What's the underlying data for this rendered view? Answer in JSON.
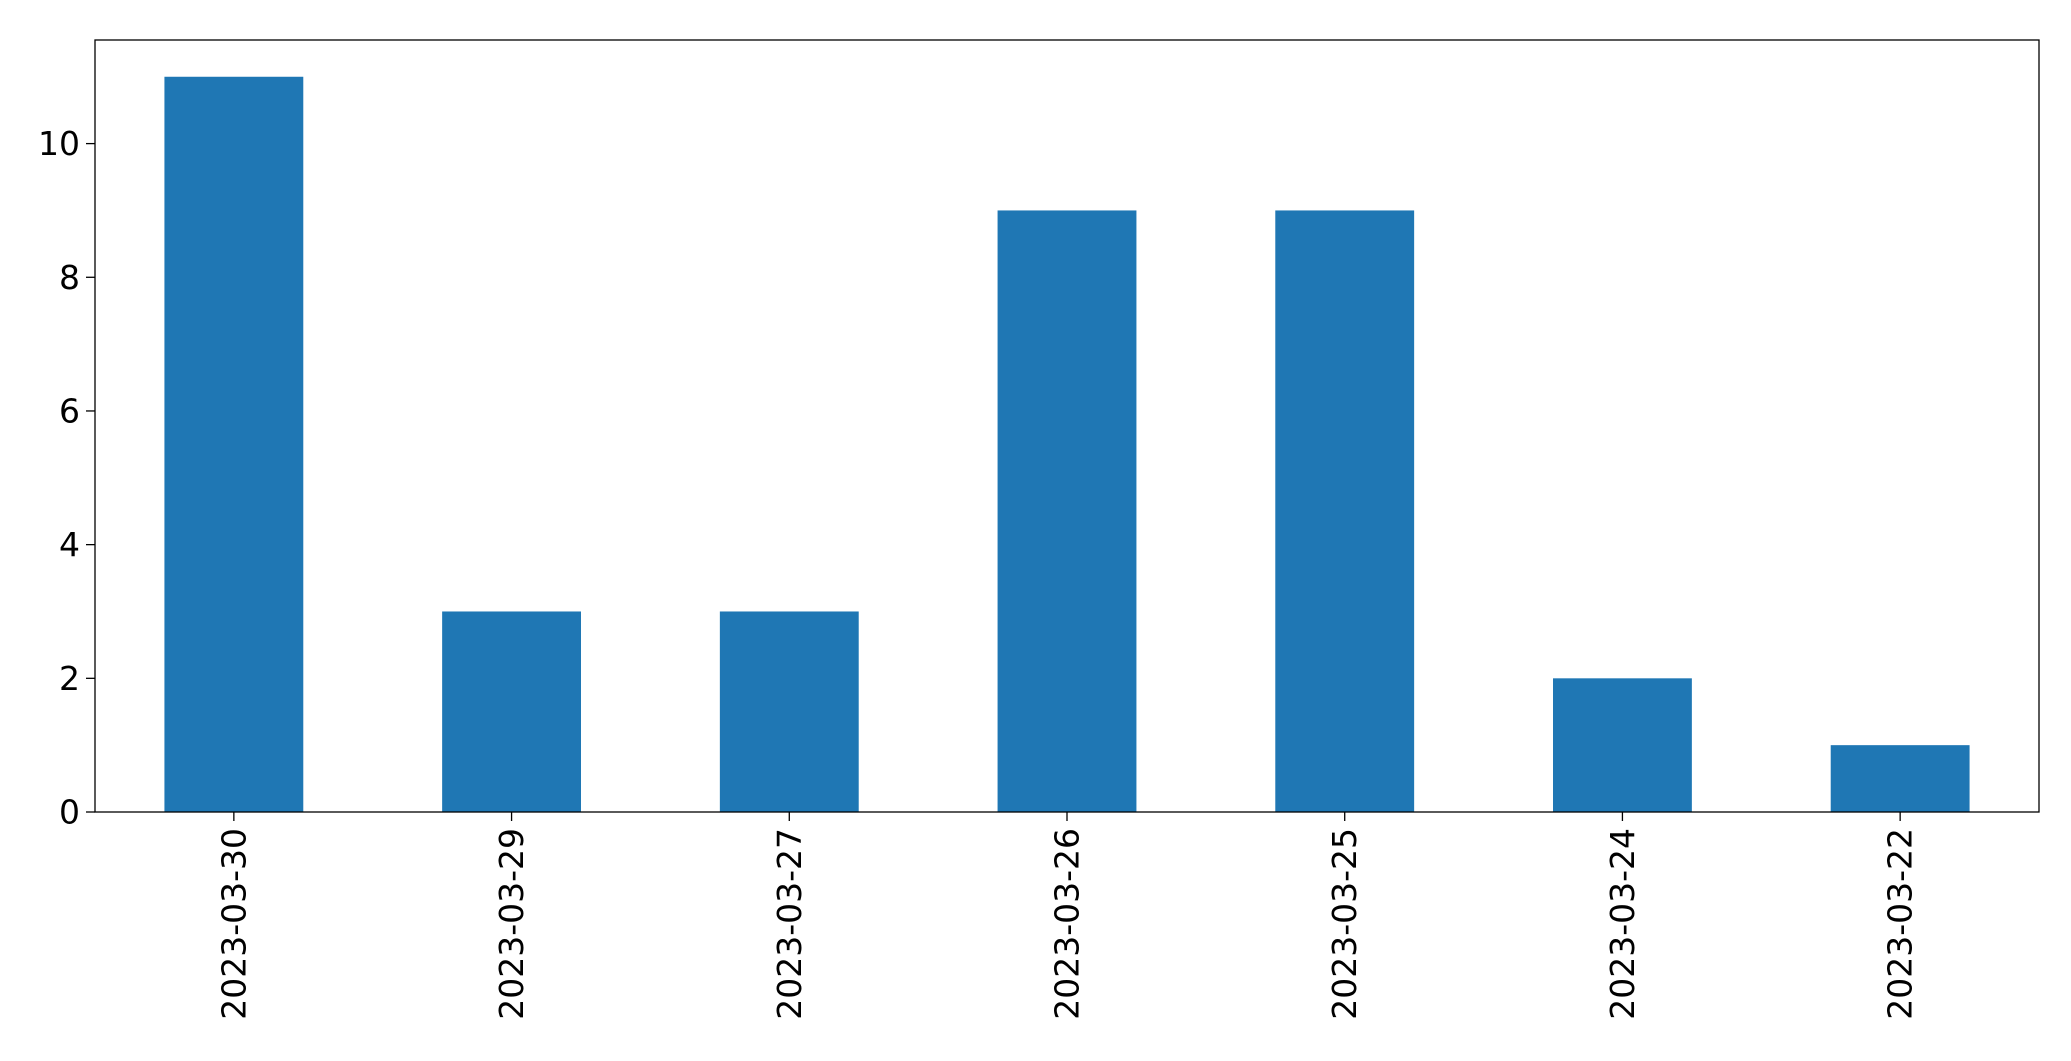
{
  "chart_data": {
    "type": "bar",
    "title": "",
    "xlabel": "",
    "ylabel": "",
    "categories": [
      "2023-03-30",
      "2023-03-29",
      "2023-03-27",
      "2023-03-26",
      "2023-03-25",
      "2023-03-24",
      "2023-03-22"
    ],
    "values": [
      11,
      3,
      3,
      9,
      9,
      2,
      1
    ],
    "ylim": [
      0,
      11.55
    ],
    "yticks": [
      0,
      2,
      4,
      6,
      8,
      10
    ],
    "ytick_labels": [
      "0",
      "2",
      "4",
      "6",
      "8",
      "10"
    ],
    "bar_color": "#1f77b4",
    "grid": false,
    "legend": "none",
    "xtick_rotation": "vertical"
  }
}
